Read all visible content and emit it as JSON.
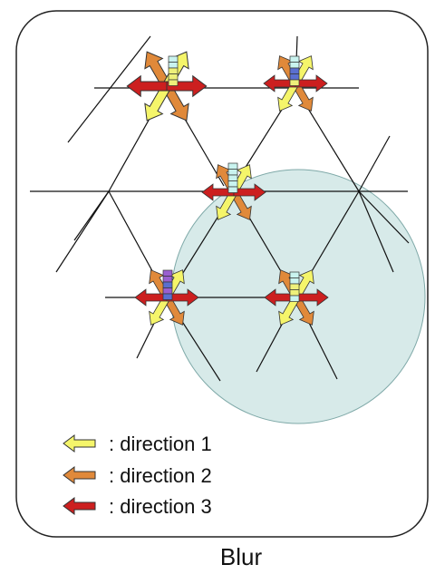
{
  "legend": [
    {
      "label": ": direction 1",
      "color": "#f5f56a",
      "icon": "yellow-arrow-icon"
    },
    {
      "label": ": direction 2",
      "color": "#e0893a",
      "icon": "orange-arrow-icon"
    },
    {
      "label": ": direction 3",
      "color": "#cc1f1f",
      "icon": "red-arrow-icon"
    }
  ],
  "caption": "Blur",
  "colors": {
    "direction1": "#f5f56a",
    "direction2": "#e0893a",
    "direction3": "#cc1f1f",
    "blur_circle": "#c9e3e2",
    "stack_cyan": "#c9f3ef",
    "stack_yellow": "#eef07a",
    "stack_blue": "#5a6fd0",
    "stack_purple": "#9a5fd0"
  }
}
